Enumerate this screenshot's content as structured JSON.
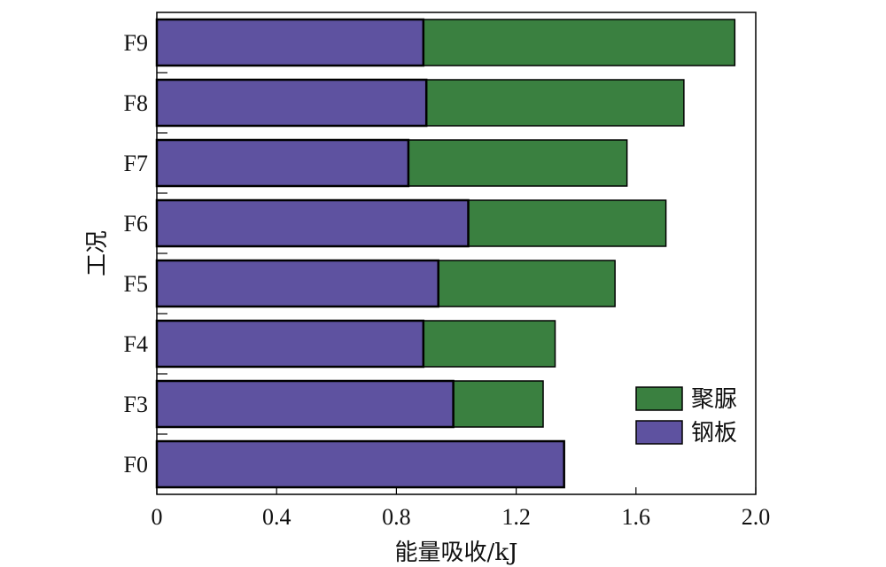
{
  "chart_data": {
    "type": "bar",
    "orientation": "horizontal",
    "stacked": true,
    "categories": [
      "F0",
      "F3",
      "F4",
      "F5",
      "F6",
      "F7",
      "F8",
      "F9"
    ],
    "series": [
      {
        "name": "钢板",
        "color": "#5e52a0",
        "values": [
          1.36,
          0.99,
          0.89,
          0.94,
          1.04,
          0.84,
          0.9,
          0.89
        ]
      },
      {
        "name": "聚脲",
        "color": "#3a8040",
        "values": [
          0.0,
          0.3,
          0.44,
          0.59,
          0.66,
          0.73,
          0.86,
          1.04
        ]
      }
    ],
    "xlabel": "能量吸收/kJ",
    "ylabel": "工况",
    "xlim": [
      0,
      2.0
    ],
    "xticks": [
      "0",
      "0.4",
      "0.8",
      "1.2",
      "1.6",
      "2.0"
    ],
    "grid": false,
    "legend_position": "bottom-right"
  }
}
